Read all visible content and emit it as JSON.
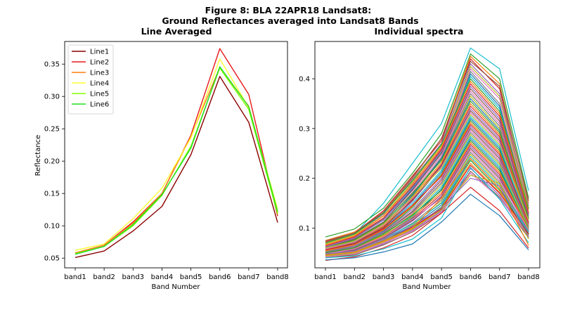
{
  "figure": {
    "title_line1": "Figure 8: BLA 22APR18  Landsat8:",
    "title_line2": "Ground Reflectances averaged into Landsat8 Bands"
  },
  "chart_data": [
    {
      "type": "line",
      "title": "Line Averaged",
      "xlabel": "Band Number",
      "ylabel": "Reflectance",
      "categories": [
        "band1",
        "band2",
        "band3",
        "band4",
        "band5",
        "band6",
        "band7",
        "band8"
      ],
      "ylim": [
        0.035,
        0.385
      ],
      "yticks": [
        0.05,
        0.1,
        0.15,
        0.2,
        0.25,
        0.3,
        0.35
      ],
      "ytick_labels": [
        "0.05",
        "0.10",
        "0.15",
        "0.20",
        "0.25",
        "0.30",
        "0.35"
      ],
      "grid": false,
      "legend": "top-left",
      "series": [
        {
          "name": "Line1",
          "color": "#8b0000",
          "values": [
            0.051,
            0.061,
            0.092,
            0.13,
            0.21,
            0.331,
            0.26,
            0.105
          ]
        },
        {
          "name": "Line2",
          "color": "#e8191c",
          "values": [
            0.058,
            0.07,
            0.106,
            0.15,
            0.24,
            0.374,
            0.303,
            0.115
          ]
        },
        {
          "name": "Line3",
          "color": "#ff7f0e",
          "values": [
            0.058,
            0.07,
            0.104,
            0.15,
            0.238,
            0.345,
            0.285,
            0.12
          ]
        },
        {
          "name": "Line4",
          "color": "#ffff33",
          "values": [
            0.062,
            0.072,
            0.111,
            0.158,
            0.236,
            0.358,
            0.283,
            0.126
          ]
        },
        {
          "name": "Line5",
          "color": "#7fff00",
          "values": [
            0.057,
            0.068,
            0.1,
            0.147,
            0.223,
            0.344,
            0.28,
            0.118
          ]
        },
        {
          "name": "Line6",
          "color": "#22dd22",
          "values": [
            0.056,
            0.068,
            0.102,
            0.148,
            0.22,
            0.346,
            0.284,
            0.122
          ]
        }
      ]
    },
    {
      "type": "line",
      "title": "Individual spectra",
      "xlabel": "Band Number",
      "ylabel": "",
      "categories": [
        "band1",
        "band2",
        "band3",
        "band4",
        "band5",
        "band6",
        "band7",
        "band8"
      ],
      "ylim": [
        0.02,
        0.475
      ],
      "yticks": [
        0.1,
        0.2,
        0.3,
        0.4
      ],
      "ytick_labels": [
        "0.1",
        "0.2",
        "0.3",
        "0.4"
      ],
      "grid": false,
      "legend": "none",
      "series": [
        {
          "color": "#17becf",
          "values": [
            0.068,
            0.088,
            0.15,
            0.23,
            0.31,
            0.462,
            0.42,
            0.175
          ]
        },
        {
          "color": "#2ca02c",
          "values": [
            0.082,
            0.098,
            0.14,
            0.21,
            0.29,
            0.45,
            0.4,
            0.16
          ]
        },
        {
          "color": "#ff7f0e",
          "values": [
            0.075,
            0.092,
            0.13,
            0.2,
            0.28,
            0.445,
            0.39,
            0.15
          ]
        },
        {
          "color": "#d62728",
          "values": [
            0.072,
            0.09,
            0.135,
            0.205,
            0.275,
            0.44,
            0.38,
            0.14
          ]
        },
        {
          "color": "#9467bd",
          "values": [
            0.07,
            0.088,
            0.128,
            0.198,
            0.27,
            0.43,
            0.37,
            0.145
          ]
        },
        {
          "color": "#8c564b",
          "values": [
            0.074,
            0.09,
            0.132,
            0.202,
            0.28,
            0.435,
            0.385,
            0.155
          ]
        },
        {
          "color": "#e377c2",
          "values": [
            0.066,
            0.084,
            0.12,
            0.19,
            0.26,
            0.42,
            0.36,
            0.135
          ]
        },
        {
          "color": "#7f7f7f",
          "values": [
            0.064,
            0.082,
            0.118,
            0.185,
            0.255,
            0.415,
            0.35,
            0.13
          ]
        },
        {
          "color": "#bcbd22",
          "values": [
            0.068,
            0.086,
            0.125,
            0.192,
            0.265,
            0.425,
            0.365,
            0.14
          ]
        },
        {
          "color": "#1f77b4",
          "values": [
            0.06,
            0.078,
            0.112,
            0.178,
            0.25,
            0.41,
            0.345,
            0.125
          ]
        },
        {
          "color": "#17becf",
          "values": [
            0.062,
            0.08,
            0.116,
            0.182,
            0.252,
            0.405,
            0.34,
            0.13
          ]
        },
        {
          "color": "#2ca02c",
          "values": [
            0.07,
            0.088,
            0.13,
            0.195,
            0.268,
            0.4,
            0.335,
            0.138
          ]
        },
        {
          "color": "#ff7f0e",
          "values": [
            0.066,
            0.084,
            0.124,
            0.188,
            0.262,
            0.395,
            0.33,
            0.132
          ]
        },
        {
          "color": "#d62728",
          "values": [
            0.064,
            0.082,
            0.12,
            0.184,
            0.258,
            0.39,
            0.325,
            0.128
          ]
        },
        {
          "color": "#9467bd",
          "values": [
            0.062,
            0.08,
            0.116,
            0.18,
            0.254,
            0.385,
            0.32,
            0.124
          ]
        },
        {
          "color": "#8c564b",
          "values": [
            0.06,
            0.078,
            0.112,
            0.176,
            0.25,
            0.38,
            0.315,
            0.12
          ]
        },
        {
          "color": "#e377c2",
          "values": [
            0.058,
            0.076,
            0.108,
            0.172,
            0.246,
            0.375,
            0.31,
            0.116
          ]
        },
        {
          "color": "#7f7f7f",
          "values": [
            0.056,
            0.074,
            0.104,
            0.168,
            0.242,
            0.37,
            0.305,
            0.112
          ]
        },
        {
          "color": "#bcbd22",
          "values": [
            0.054,
            0.072,
            0.1,
            0.164,
            0.238,
            0.365,
            0.3,
            0.11
          ]
        },
        {
          "color": "#1f77b4",
          "values": [
            0.058,
            0.074,
            0.106,
            0.166,
            0.24,
            0.36,
            0.296,
            0.114
          ]
        },
        {
          "color": "#2ca02c",
          "values": [
            0.06,
            0.076,
            0.11,
            0.17,
            0.236,
            0.355,
            0.292,
            0.118
          ]
        },
        {
          "color": "#ff7f0e",
          "values": [
            0.056,
            0.072,
            0.104,
            0.162,
            0.232,
            0.35,
            0.288,
            0.112
          ]
        },
        {
          "color": "#d62728",
          "values": [
            0.054,
            0.07,
            0.1,
            0.158,
            0.228,
            0.345,
            0.284,
            0.108
          ]
        },
        {
          "color": "#9467bd",
          "values": [
            0.052,
            0.068,
            0.098,
            0.154,
            0.224,
            0.34,
            0.28,
            0.106
          ]
        },
        {
          "color": "#8c564b",
          "values": [
            0.056,
            0.07,
            0.102,
            0.156,
            0.226,
            0.336,
            0.276,
            0.11
          ]
        },
        {
          "color": "#e377c2",
          "values": [
            0.058,
            0.072,
            0.106,
            0.16,
            0.222,
            0.332,
            0.272,
            0.114
          ]
        },
        {
          "color": "#bcbd22",
          "values": [
            0.06,
            0.074,
            0.108,
            0.162,
            0.22,
            0.328,
            0.268,
            0.116
          ]
        },
        {
          "color": "#17becf",
          "values": [
            0.054,
            0.068,
            0.098,
            0.15,
            0.216,
            0.324,
            0.264,
            0.108
          ]
        },
        {
          "color": "#1f77b4",
          "values": [
            0.052,
            0.066,
            0.094,
            0.146,
            0.212,
            0.32,
            0.26,
            0.104
          ]
        },
        {
          "color": "#2ca02c",
          "values": [
            0.05,
            0.064,
            0.092,
            0.142,
            0.208,
            0.316,
            0.256,
            0.102
          ]
        },
        {
          "color": "#ff7f0e",
          "values": [
            0.054,
            0.066,
            0.096,
            0.144,
            0.206,
            0.312,
            0.252,
            0.106
          ]
        },
        {
          "color": "#d62728",
          "values": [
            0.056,
            0.068,
            0.098,
            0.146,
            0.204,
            0.308,
            0.248,
            0.11
          ]
        },
        {
          "color": "#9467bd",
          "values": [
            0.052,
            0.064,
            0.092,
            0.138,
            0.2,
            0.304,
            0.244,
            0.104
          ]
        },
        {
          "color": "#8c564b",
          "values": [
            0.05,
            0.062,
            0.09,
            0.134,
            0.196,
            0.3,
            0.24,
            0.1
          ]
        },
        {
          "color": "#e377c2",
          "values": [
            0.048,
            0.06,
            0.088,
            0.13,
            0.192,
            0.296,
            0.236,
            0.098
          ]
        },
        {
          "color": "#7f7f7f",
          "values": [
            0.052,
            0.062,
            0.09,
            0.132,
            0.19,
            0.292,
            0.232,
            0.102
          ]
        },
        {
          "color": "#bcbd22",
          "values": [
            0.05,
            0.06,
            0.086,
            0.128,
            0.186,
            0.288,
            0.228,
            0.1
          ]
        },
        {
          "color": "#17becf",
          "values": [
            0.048,
            0.058,
            0.084,
            0.124,
            0.182,
            0.284,
            0.224,
            0.096
          ]
        },
        {
          "color": "#1f77b4",
          "values": [
            0.046,
            0.056,
            0.082,
            0.12,
            0.178,
            0.28,
            0.22,
            0.094
          ]
        },
        {
          "color": "#2ca02c",
          "values": [
            0.05,
            0.06,
            0.088,
            0.126,
            0.176,
            0.276,
            0.216,
            0.098
          ]
        },
        {
          "color": "#ff7f0e",
          "values": [
            0.048,
            0.058,
            0.084,
            0.122,
            0.172,
            0.272,
            0.212,
            0.096
          ]
        },
        {
          "color": "#d62728",
          "values": [
            0.046,
            0.056,
            0.08,
            0.118,
            0.168,
            0.268,
            0.208,
            0.092
          ]
        },
        {
          "color": "#9467bd",
          "values": [
            0.044,
            0.054,
            0.078,
            0.114,
            0.164,
            0.264,
            0.204,
            0.09
          ]
        },
        {
          "color": "#8c564b",
          "values": [
            0.046,
            0.056,
            0.08,
            0.116,
            0.162,
            0.26,
            0.2,
            0.094
          ]
        },
        {
          "color": "#e377c2",
          "values": [
            0.048,
            0.058,
            0.082,
            0.118,
            0.16,
            0.256,
            0.196,
            0.096
          ]
        },
        {
          "color": "#7f7f7f",
          "values": [
            0.044,
            0.052,
            0.076,
            0.11,
            0.156,
            0.252,
            0.192,
            0.09
          ]
        },
        {
          "color": "#bcbd22",
          "values": [
            0.042,
            0.05,
            0.074,
            0.106,
            0.152,
            0.248,
            0.188,
            0.088
          ]
        },
        {
          "color": "#17becf",
          "values": [
            0.046,
            0.054,
            0.078,
            0.108,
            0.15,
            0.244,
            0.184,
            0.092
          ]
        },
        {
          "color": "#1f77b4",
          "values": [
            0.044,
            0.052,
            0.074,
            0.104,
            0.146,
            0.24,
            0.18,
            0.088
          ]
        },
        {
          "color": "#2ca02c",
          "values": [
            0.042,
            0.05,
            0.072,
            0.1,
            0.142,
            0.236,
            0.176,
            0.086
          ]
        },
        {
          "color": "#ff7f0e",
          "values": [
            0.04,
            0.048,
            0.07,
            0.098,
            0.14,
            0.23,
            0.172,
            0.084
          ]
        },
        {
          "color": "#d62728",
          "values": [
            0.044,
            0.05,
            0.072,
            0.102,
            0.138,
            0.226,
            0.17,
            0.088
          ]
        },
        {
          "color": "#9467bd",
          "values": [
            0.042,
            0.048,
            0.068,
            0.096,
            0.134,
            0.22,
            0.166,
            0.082
          ]
        },
        {
          "color": "#8c564b",
          "values": [
            0.04,
            0.046,
            0.066,
            0.092,
            0.13,
            0.214,
            0.162,
            0.08
          ]
        },
        {
          "color": "#e377c2",
          "values": [
            0.042,
            0.048,
            0.07,
            0.094,
            0.132,
            0.21,
            0.16,
            0.084
          ]
        },
        {
          "color": "#bcbd22",
          "values": [
            0.044,
            0.05,
            0.072,
            0.098,
            0.136,
            0.206,
            0.19,
            0.078
          ]
        },
        {
          "color": "#9467bd",
          "values": [
            0.048,
            0.054,
            0.078,
            0.104,
            0.14,
            0.2,
            0.185,
            0.082
          ]
        },
        {
          "color": "#d62728",
          "values": [
            0.035,
            0.042,
            0.06,
            0.085,
            0.13,
            0.182,
            0.135,
            0.06
          ]
        },
        {
          "color": "#1f77b4",
          "values": [
            0.036,
            0.04,
            0.052,
            0.068,
            0.112,
            0.168,
            0.125,
            0.056
          ]
        },
        {
          "color": "#17becf",
          "values": [
            0.04,
            0.044,
            0.058,
            0.078,
            0.12,
            0.222,
            0.158,
            0.07
          ]
        },
        {
          "color": "#ff7f0e",
          "values": [
            0.046,
            0.052,
            0.074,
            0.1,
            0.16,
            0.24,
            0.18,
            0.065
          ]
        }
      ]
    }
  ]
}
